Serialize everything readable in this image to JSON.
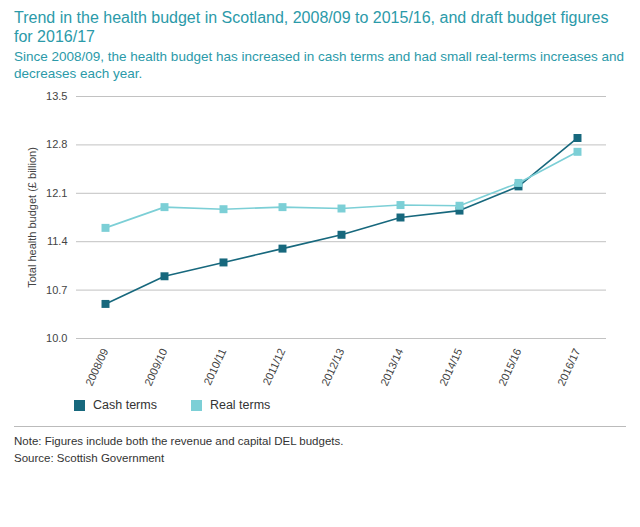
{
  "chart_data": {
    "type": "line",
    "title": "Trend in the health budget in Scotland, 2008/09 to 2015/16, and draft budget figures for 2016/17",
    "subtitle": "Since 2008/09, the health budget has increased in cash terms and had small real-terms increases and decreases each year.",
    "y_label": "Total health budget (£ billion)",
    "categories": [
      "2008/09",
      "2009/10",
      "2010/11",
      "2011/12",
      "2012/13",
      "2013/14",
      "2014/15",
      "2015/16",
      "2016/17"
    ],
    "series": [
      {
        "name": "Cash terms",
        "color": "#17687d",
        "marker": "square",
        "line_style": "solid",
        "values": [
          10.5,
          10.9,
          11.1,
          11.3,
          11.5,
          11.75,
          11.85,
          12.2,
          12.9
        ]
      },
      {
        "name": "Real terms",
        "color": "#7ccfd6",
        "marker": "square",
        "line_style": "solid",
        "values": [
          11.6,
          11.9,
          11.87,
          11.9,
          11.88,
          11.93,
          11.92,
          12.25,
          12.7
        ]
      }
    ],
    "ylim": [
      10,
      13.5
    ],
    "yticks": [
      {
        "value": 10,
        "label": "10.0"
      },
      10.7,
      11.4,
      12.1,
      12.8,
      13.5
    ],
    "grid": true,
    "legend": "bottom",
    "note": "Note: Figures include both the revenue and capital DEL budgets.",
    "source": "Source: Scottish Government"
  }
}
